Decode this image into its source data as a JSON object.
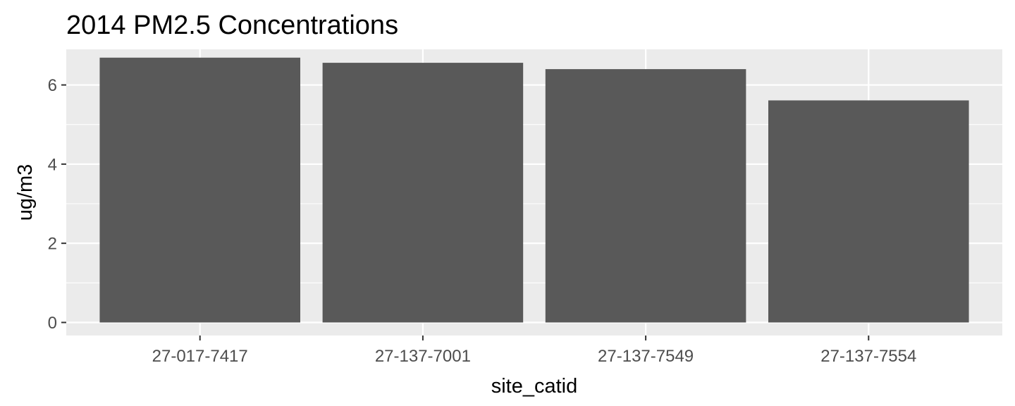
{
  "chart_data": {
    "type": "bar",
    "title": "2014 PM2.5 Concentrations",
    "xlabel": "site_catid",
    "ylabel": "ug/m3",
    "categories": [
      "27-017-7417",
      "27-137-7001",
      "27-137-7549",
      "27-137-7554"
    ],
    "values": [
      6.69,
      6.56,
      6.4,
      5.61
    ],
    "yticks": [
      0,
      2,
      4,
      6
    ],
    "ylim": [
      -0.33,
      6.9
    ],
    "grid": true,
    "legend": "none",
    "colors": {
      "bar": "#595959",
      "panel": "#ebebeb",
      "grid_major": "#ffffff",
      "tick": "#333333"
    }
  }
}
